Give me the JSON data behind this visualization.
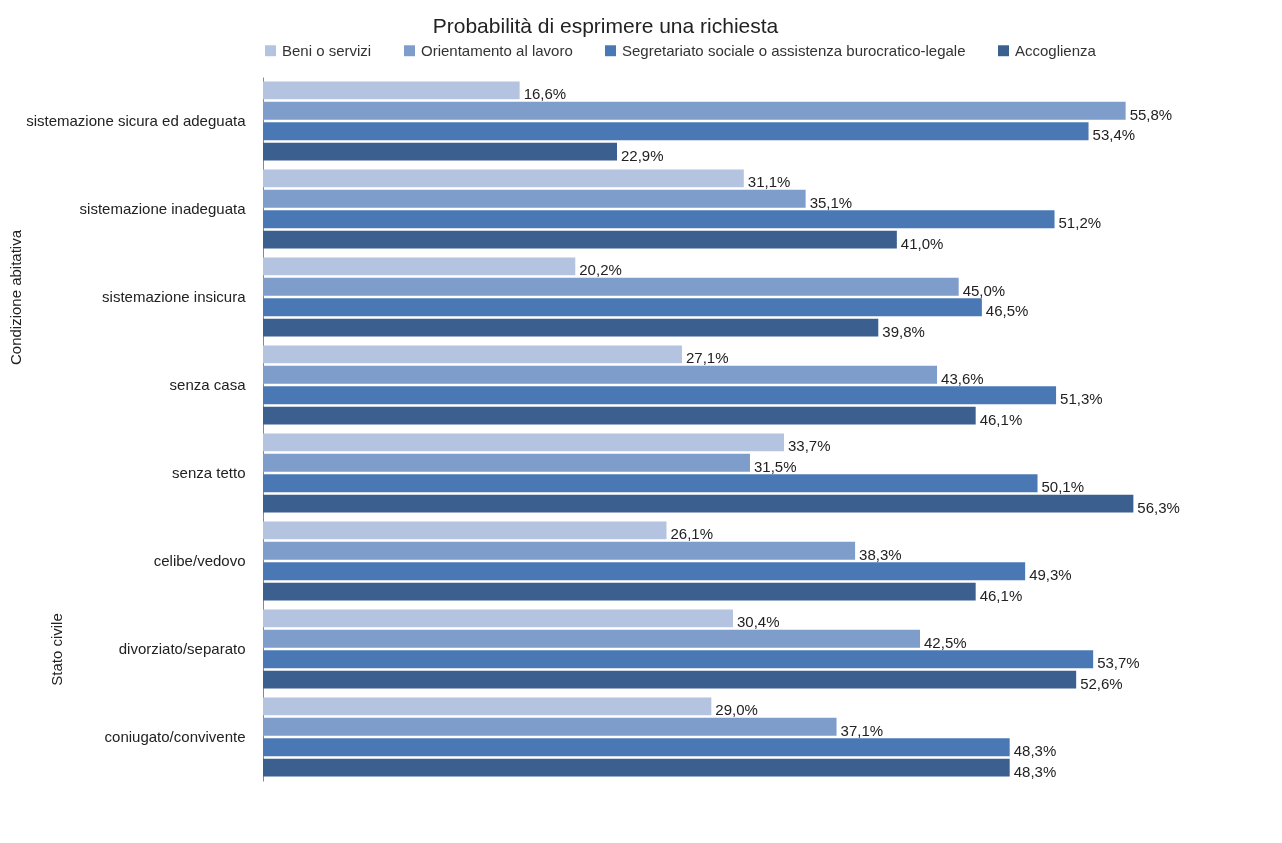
{
  "chart_data": [
    {
      "type": "bar",
      "orientation": "horizontal",
      "title": "Probabilità di esprimere una richiesta",
      "ylabel": "Condizione abitativa",
      "legend": "top",
      "categories": [
        "sistemazione sicura ed adeguata",
        "sistemazione inadeguata",
        "sistemazione insicura",
        "senza casa",
        "senza tetto"
      ],
      "series": [
        {
          "name": "Beni o servizi",
          "color": "#b4c3df",
          "values": [
            16.6,
            31.1,
            20.2,
            27.1,
            33.7
          ],
          "value_labels": [
            "16,6%",
            "31,1%",
            "20,2%",
            "27,1%",
            "33,7%"
          ]
        },
        {
          "name": "Orientamento al lavoro",
          "color": "#7f9dcb",
          "values": [
            55.8,
            35.1,
            45.0,
            43.6,
            31.5
          ],
          "value_labels": [
            "55,8%",
            "35,1%",
            "45,0%",
            "43,6%",
            "31,5%"
          ]
        },
        {
          "name": "Segretariato sociale o assistenza burocratico-legale",
          "color": "#4a78b4",
          "values": [
            53.4,
            51.2,
            46.5,
            51.3,
            50.1
          ],
          "value_labels": [
            "53,4%",
            "51,2%",
            "46,5%",
            "51,3%",
            "50,1%"
          ]
        },
        {
          "name": "Accoglienza",
          "color": "#3b5f8f",
          "values": [
            22.9,
            41.0,
            39.8,
            46.1,
            56.3
          ],
          "value_labels": [
            "22,9%",
            "41,0%",
            "39,8%",
            "46,1%",
            "56,3%"
          ]
        }
      ]
    },
    {
      "type": "bar",
      "orientation": "horizontal",
      "ylabel": "Stato civile",
      "categories": [
        "celibe/vedovo",
        "divorziato/separato",
        "coniugato/convivente"
      ],
      "series": [
        {
          "color": "#b4c3df",
          "values": [
            26.1,
            30.4,
            29.0
          ],
          "value_labels": [
            "26,1%",
            "30,4%",
            "29,0%"
          ]
        },
        {
          "color": "#7f9dcb",
          "values": [
            38.3,
            42.5,
            37.1
          ],
          "value_labels": [
            "38,3%",
            "42,5%",
            "37,1%"
          ]
        },
        {
          "color": "#4a78b4",
          "values": [
            49.3,
            53.7,
            48.3
          ],
          "value_labels": [
            "49,3%",
            "53,7%",
            "48,3%"
          ]
        },
        {
          "color": "#3b5f8f",
          "values": [
            46.1,
            52.6,
            48.3
          ],
          "value_labels": [
            "46,1%",
            "52,6%",
            "48,3%"
          ]
        }
      ]
    }
  ]
}
